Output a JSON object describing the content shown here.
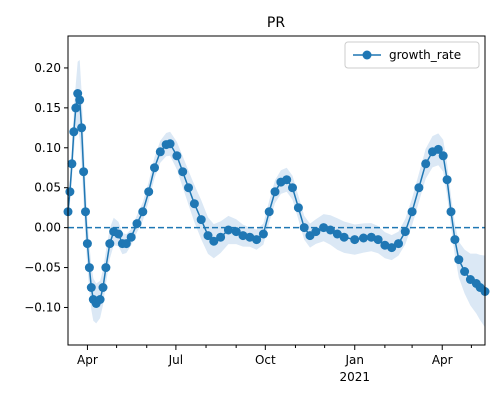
{
  "chart_data": {
    "type": "line",
    "title": "PR",
    "xlabel": "",
    "ylabel": "",
    "x_start": "2020-03-12",
    "x_end": "2021-05-15",
    "ylim": [
      -0.147,
      0.24
    ],
    "yticks": [
      -0.1,
      -0.05,
      0.0,
      0.05,
      0.1,
      0.15,
      0.2
    ],
    "ytick_labels": [
      "−0.10",
      "−0.05",
      "0.00",
      "0.05",
      "0.10",
      "0.15",
      "0.20"
    ],
    "xticks_major": [
      {
        "date": "2020-04-01",
        "label": "Apr",
        "sublabel": ""
      },
      {
        "date": "2020-07-01",
        "label": "Jul",
        "sublabel": ""
      },
      {
        "date": "2020-10-01",
        "label": "Oct",
        "sublabel": ""
      },
      {
        "date": "2021-01-01",
        "label": "Jan",
        "sublabel": "2021"
      },
      {
        "date": "2021-04-01",
        "label": "Apr",
        "sublabel": ""
      }
    ],
    "xticks_minor": [
      "2020-05-01",
      "2020-06-01",
      "2020-08-01",
      "2020-09-01",
      "2020-11-01",
      "2020-12-01",
      "2021-02-01",
      "2021-03-01",
      "2021-05-01"
    ],
    "reference_line": {
      "y": 0.0,
      "style": "dashed"
    },
    "legend": {
      "location": "top-right",
      "entries": [
        "growth_rate"
      ]
    },
    "grid": false,
    "colors": {
      "series": "#1f77b4",
      "band": "#dbe8f5",
      "axis": "#000000"
    },
    "series": [
      {
        "name": "growth_rate",
        "marker": "circle",
        "points": [
          [
            "2020-03-12",
            0.02
          ],
          [
            "2020-03-14",
            0.045
          ],
          [
            "2020-03-16",
            0.08
          ],
          [
            "2020-03-18",
            0.12
          ],
          [
            "2020-03-20",
            0.15
          ],
          [
            "2020-03-22",
            0.168
          ],
          [
            "2020-03-24",
            0.16
          ],
          [
            "2020-03-26",
            0.125
          ],
          [
            "2020-03-28",
            0.07
          ],
          [
            "2020-03-30",
            0.02
          ],
          [
            "2020-04-01",
            -0.02
          ],
          [
            "2020-04-03",
            -0.05
          ],
          [
            "2020-04-05",
            -0.075
          ],
          [
            "2020-04-07",
            -0.09
          ],
          [
            "2020-04-10",
            -0.095
          ],
          [
            "2020-04-14",
            -0.09
          ],
          [
            "2020-04-17",
            -0.075
          ],
          [
            "2020-04-20",
            -0.05
          ],
          [
            "2020-04-24",
            -0.02
          ],
          [
            "2020-04-28",
            -0.005
          ],
          [
            "2020-05-03",
            -0.008
          ],
          [
            "2020-05-07",
            -0.02
          ],
          [
            "2020-05-11",
            -0.02
          ],
          [
            "2020-05-16",
            -0.012
          ],
          [
            "2020-05-22",
            0.005
          ],
          [
            "2020-05-28",
            0.02
          ],
          [
            "2020-06-03",
            0.045
          ],
          [
            "2020-06-09",
            0.075
          ],
          [
            "2020-06-15",
            0.095
          ],
          [
            "2020-06-21",
            0.104
          ],
          [
            "2020-06-25",
            0.105
          ],
          [
            "2020-07-02",
            0.09
          ],
          [
            "2020-07-08",
            0.07
          ],
          [
            "2020-07-14",
            0.05
          ],
          [
            "2020-07-20",
            0.03
          ],
          [
            "2020-07-27",
            0.01
          ],
          [
            "2020-08-03",
            -0.01
          ],
          [
            "2020-08-09",
            -0.017
          ],
          [
            "2020-08-16",
            -0.012
          ],
          [
            "2020-08-24",
            -0.003
          ],
          [
            "2020-09-01",
            -0.005
          ],
          [
            "2020-09-08",
            -0.01
          ],
          [
            "2020-09-15",
            -0.012
          ],
          [
            "2020-09-22",
            -0.015
          ],
          [
            "2020-09-29",
            -0.008
          ],
          [
            "2020-10-05",
            0.02
          ],
          [
            "2020-10-11",
            0.045
          ],
          [
            "2020-10-17",
            0.057
          ],
          [
            "2020-10-23",
            0.06
          ],
          [
            "2020-10-29",
            0.05
          ],
          [
            "2020-11-04",
            0.025
          ],
          [
            "2020-11-10",
            0.0
          ],
          [
            "2020-11-16",
            -0.01
          ],
          [
            "2020-11-22",
            -0.005
          ],
          [
            "2020-11-30",
            0.0
          ],
          [
            "2020-12-07",
            -0.003
          ],
          [
            "2020-12-14",
            -0.008
          ],
          [
            "2020-12-21",
            -0.012
          ],
          [
            "2021-01-01",
            -0.015
          ],
          [
            "2021-01-10",
            -0.013
          ],
          [
            "2021-01-18",
            -0.012
          ],
          [
            "2021-01-25",
            -0.015
          ],
          [
            "2021-02-01",
            -0.022
          ],
          [
            "2021-02-08",
            -0.025
          ],
          [
            "2021-02-15",
            -0.02
          ],
          [
            "2021-02-22",
            -0.005
          ],
          [
            "2021-03-01",
            0.02
          ],
          [
            "2021-03-08",
            0.05
          ],
          [
            "2021-03-15",
            0.08
          ],
          [
            "2021-03-22",
            0.095
          ],
          [
            "2021-03-28",
            0.098
          ],
          [
            "2021-04-02",
            0.09
          ],
          [
            "2021-04-06",
            0.06
          ],
          [
            "2021-04-10",
            0.02
          ],
          [
            "2021-04-14",
            -0.015
          ],
          [
            "2021-04-18",
            -0.04
          ],
          [
            "2021-04-24",
            -0.055
          ],
          [
            "2021-04-30",
            -0.065
          ],
          [
            "2021-05-06",
            -0.07
          ],
          [
            "2021-05-10",
            -0.075
          ],
          [
            "2021-05-15",
            -0.08
          ]
        ],
        "band_halfwidth": [
          [
            "2020-03-12",
            0.01
          ],
          [
            "2020-03-20",
            0.03
          ],
          [
            "2020-03-24",
            0.05
          ],
          [
            "2020-04-01",
            0.03
          ],
          [
            "2020-04-10",
            0.025
          ],
          [
            "2020-05-15",
            0.01
          ],
          [
            "2020-06-25",
            0.015
          ],
          [
            "2020-07-25",
            0.025
          ],
          [
            "2020-08-15",
            0.02
          ],
          [
            "2020-09-15",
            0.012
          ],
          [
            "2020-10-20",
            0.015
          ],
          [
            "2020-11-20",
            0.015
          ],
          [
            "2020-12-15",
            0.02
          ],
          [
            "2021-01-15",
            0.018
          ],
          [
            "2021-02-15",
            0.015
          ],
          [
            "2021-03-25",
            0.02
          ],
          [
            "2021-04-15",
            0.02
          ],
          [
            "2021-05-15",
            0.045
          ]
        ]
      }
    ]
  }
}
